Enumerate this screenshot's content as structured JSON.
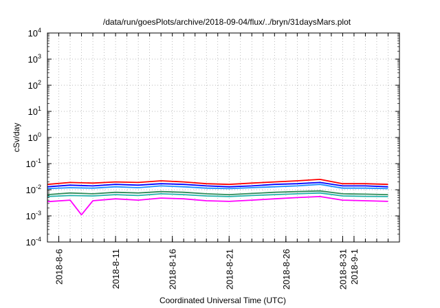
{
  "chart_data": {
    "type": "line",
    "title": "/data/run/goesPlots/archive/2018-09-04/flux/../bryn/31daysMars.plot",
    "xlabel": "Coordinated Universal Time (UTC)",
    "ylabel": "cSv/day",
    "yscale": "log",
    "ylim": [
      0.0001,
      10000
    ],
    "xlim": [
      "2018-08-05",
      "2018-09-05"
    ],
    "y_ticks": [
      {
        "base": "10",
        "exp": "-4"
      },
      {
        "base": "10",
        "exp": "-3"
      },
      {
        "base": "10",
        "exp": "-2"
      },
      {
        "base": "10",
        "exp": "-1"
      },
      {
        "base": "10",
        "exp": "0"
      },
      {
        "base": "10",
        "exp": "1"
      },
      {
        "base": "10",
        "exp": "2"
      },
      {
        "base": "10",
        "exp": "3"
      },
      {
        "base": "10",
        "exp": "4"
      }
    ],
    "x_ticks": [
      {
        "label": "2018-8-6",
        "date": "2018-08-06"
      },
      {
        "label": "2018-8-11",
        "date": "2018-08-11"
      },
      {
        "label": "2018-8-16",
        "date": "2018-08-16"
      },
      {
        "label": "2018-8-21",
        "date": "2018-08-21"
      },
      {
        "label": "2018-8-26",
        "date": "2018-08-26"
      },
      {
        "label": "2018-8-31",
        "date": "2018-08-31"
      },
      {
        "label": "2018-9-1",
        "date": "2018-09-01"
      }
    ],
    "grid": true,
    "legend": "none",
    "series": [
      {
        "color": "#ff0000",
        "x": [
          "2018-08-05",
          "2018-08-07",
          "2018-08-09",
          "2018-08-11",
          "2018-08-13",
          "2018-08-15",
          "2018-08-17",
          "2018-08-19",
          "2018-08-21",
          "2018-08-23",
          "2018-08-25",
          "2018-08-27",
          "2018-08-29",
          "2018-08-31",
          "2018-09-02",
          "2018-09-04"
        ],
        "y": [
          0.016,
          0.019,
          0.018,
          0.02,
          0.019,
          0.022,
          0.02,
          0.017,
          0.016,
          0.018,
          0.02,
          0.022,
          0.025,
          0.017,
          0.017,
          0.016
        ]
      },
      {
        "color": "#0000ff",
        "x": [
          "2018-08-05",
          "2018-08-07",
          "2018-08-09",
          "2018-08-11",
          "2018-08-13",
          "2018-08-15",
          "2018-08-17",
          "2018-08-19",
          "2018-08-21",
          "2018-08-23",
          "2018-08-25",
          "2018-08-27",
          "2018-08-29",
          "2018-08-31",
          "2018-09-02",
          "2018-09-04"
        ],
        "y": [
          0.013,
          0.015,
          0.014,
          0.016,
          0.015,
          0.017,
          0.016,
          0.014,
          0.013,
          0.014,
          0.016,
          0.017,
          0.019,
          0.014,
          0.014,
          0.013
        ]
      },
      {
        "color": "#1e90ff",
        "x": [
          "2018-08-05",
          "2018-08-07",
          "2018-08-09",
          "2018-08-11",
          "2018-08-13",
          "2018-08-15",
          "2018-08-17",
          "2018-08-19",
          "2018-08-21",
          "2018-08-23",
          "2018-08-25",
          "2018-08-27",
          "2018-08-29",
          "2018-08-31",
          "2018-09-02",
          "2018-09-04"
        ],
        "y": [
          0.011,
          0.012,
          0.0115,
          0.013,
          0.012,
          0.014,
          0.013,
          0.0115,
          0.011,
          0.012,
          0.013,
          0.014,
          0.016,
          0.0115,
          0.0115,
          0.011
        ]
      },
      {
        "color": "#2e8b57",
        "x": [
          "2018-08-05",
          "2018-08-07",
          "2018-08-09",
          "2018-08-11",
          "2018-08-13",
          "2018-08-15",
          "2018-08-17",
          "2018-08-19",
          "2018-08-21",
          "2018-08-23",
          "2018-08-25",
          "2018-08-27",
          "2018-08-29",
          "2018-08-31",
          "2018-09-02",
          "2018-09-04"
        ],
        "y": [
          0.0065,
          0.0075,
          0.007,
          0.008,
          0.0075,
          0.0085,
          0.008,
          0.007,
          0.0065,
          0.0072,
          0.008,
          0.0085,
          0.009,
          0.007,
          0.0068,
          0.0065
        ]
      },
      {
        "color": "#20b2aa",
        "x": [
          "2018-08-05",
          "2018-08-07",
          "2018-08-09",
          "2018-08-11",
          "2018-08-13",
          "2018-08-15",
          "2018-08-17",
          "2018-08-19",
          "2018-08-21",
          "2018-08-23",
          "2018-08-25",
          "2018-08-27",
          "2018-08-29",
          "2018-08-31",
          "2018-09-02",
          "2018-09-04"
        ],
        "y": [
          0.0055,
          0.006,
          0.0058,
          0.0065,
          0.006,
          0.007,
          0.0065,
          0.0058,
          0.0055,
          0.006,
          0.0065,
          0.007,
          0.0075,
          0.0058,
          0.0056,
          0.0055
        ]
      },
      {
        "color": "#ff00ff",
        "x": [
          "2018-08-05",
          "2018-08-07",
          "2018-08-08",
          "2018-08-09",
          "2018-08-11",
          "2018-08-13",
          "2018-08-15",
          "2018-08-17",
          "2018-08-19",
          "2018-08-21",
          "2018-08-23",
          "2018-08-25",
          "2018-08-27",
          "2018-08-29",
          "2018-08-31",
          "2018-09-02",
          "2018-09-04"
        ],
        "y": [
          0.0035,
          0.004,
          0.0011,
          0.0038,
          0.0045,
          0.004,
          0.0048,
          0.0045,
          0.0038,
          0.0036,
          0.004,
          0.0045,
          0.005,
          0.0055,
          0.004,
          0.0038,
          0.0036
        ]
      }
    ]
  }
}
